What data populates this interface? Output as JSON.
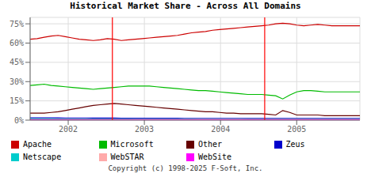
{
  "chart_data": {
    "type": "line",
    "title": "Historical Market Share - Across All Domains",
    "annotations": [
      "Copyright (c) 1998-2025 F-Soft, Inc."
    ],
    "x": [
      2001.5,
      2001.5921276596,
      2001.6842553191,
      2001.7763829787,
      2001.8685106383,
      2001.9606382979,
      2002.0527659574,
      2002.144893617,
      2002.2370212766,
      2002.3291489362,
      2002.4212765957,
      2002.5134042553,
      2002.6055319149,
      2002.6976595745,
      2002.789787234,
      2002.8819148936,
      2002.9740425532,
      2003.0661702128,
      2003.1582978723,
      2003.2504255319,
      2003.3425531915,
      2003.4346808511,
      2003.5268085106,
      2003.6189361702,
      2003.7110638298,
      2003.8031914894,
      2003.8953191489,
      2003.9874468085,
      2004.0795744681,
      2004.1717021277,
      2004.2638297872,
      2004.3559574468,
      2004.4480851064,
      2004.540212766,
      2004.6323404255,
      2004.7244680851,
      2004.8165957447,
      2004.9087234043,
      2005.0008510638,
      2005.0929787234,
      2005.185106383,
      2005.2772340426,
      2005.3693617021,
      2005.4614893617,
      2005.5536170213,
      2005.6457446809,
      2005.7378723404,
      2005.83
    ],
    "xlim": [
      2001.5,
      2005.83
    ],
    "xticks": [
      2002,
      2003,
      2004,
      2005
    ],
    "ylim": [
      0,
      80
    ],
    "yticks": [
      {
        "value": 0,
        "label": "0%"
      },
      {
        "value": 15,
        "label": "15%"
      },
      {
        "value": 30,
        "label": "30%"
      },
      {
        "value": 45,
        "label": "45%"
      },
      {
        "value": 60,
        "label": "60%"
      },
      {
        "value": 75,
        "label": "75%"
      }
    ],
    "grid": true,
    "legend": "bottom",
    "vlines": [
      {
        "x": 2002.58,
        "color": "red"
      },
      {
        "x": 2004.58,
        "color": "red"
      }
    ],
    "series": [
      {
        "name": "Apache",
        "color": "#cc0000",
        "values": [
          63,
          63.5,
          64.5,
          65.5,
          66,
          65,
          64,
          63,
          62.5,
          62,
          62.5,
          63.5,
          63,
          62,
          62.5,
          63,
          63.5,
          64,
          64.5,
          65,
          65.5,
          66,
          67,
          68,
          68.5,
          69,
          70,
          70.5,
          71,
          71.5,
          72,
          72.5,
          73,
          73.5,
          74,
          75,
          75.5,
          75,
          74,
          73.5,
          74,
          74.5,
          74,
          73.5,
          73.5,
          73.5,
          73.5,
          73.5
        ]
      },
      {
        "name": "Microsoft",
        "color": "#00bb00",
        "values": [
          27,
          27.5,
          28,
          27,
          26.5,
          26,
          25.5,
          25,
          24.5,
          24,
          24.5,
          25,
          25.5,
          26,
          26.5,
          26.5,
          26.5,
          26.5,
          26,
          25.5,
          25,
          24.5,
          24,
          23.5,
          23,
          23,
          22.5,
          22,
          21.5,
          21,
          20.5,
          20,
          20,
          20,
          19.5,
          19,
          16.5,
          19.5,
          22,
          23,
          23,
          22.5,
          22,
          22,
          22,
          22,
          22,
          22
        ]
      },
      {
        "name": "Other",
        "color": "#660000",
        "values": [
          5.5,
          5.5,
          5.5,
          6,
          6.5,
          7.5,
          8.5,
          9.5,
          10.5,
          11.5,
          12,
          12.5,
          13,
          12.5,
          12,
          11.5,
          11,
          10.5,
          10,
          9.5,
          9,
          8.5,
          8,
          7.5,
          7,
          6.5,
          6.5,
          6,
          5.5,
          5.5,
          5,
          5,
          5,
          5,
          4.5,
          4,
          7.5,
          6,
          4,
          4,
          4,
          4,
          3.5,
          3.5,
          3.5,
          3.5,
          3.5,
          3.5
        ]
      },
      {
        "name": "Zeus",
        "color": "#0000cc",
        "values": [
          1.8,
          1.8,
          1.8,
          1.8,
          1.8,
          1.7,
          1.7,
          1.7,
          1.7,
          1.6,
          1.6,
          1.6,
          1.6,
          1.5,
          1.5,
          1.5,
          1.5,
          1.5,
          1.5,
          1.5,
          1.5,
          1.5,
          1.4,
          1.4,
          1.4,
          1.4,
          1.4,
          1.4,
          1.4,
          1.4,
          1.4,
          1.3,
          1.3,
          1.3,
          1.3,
          1.3,
          1.3,
          1.3,
          1.3,
          1.3,
          1.3,
          1.3,
          1.3,
          1.3,
          1.3,
          1.3,
          1.3,
          1.3
        ]
      },
      {
        "name": "Netscape",
        "color": "#00cccc",
        "values": [
          1.0,
          1.0,
          1.0,
          1.0,
          0.9,
          0.9,
          0.9,
          0.9,
          0.8,
          0.8,
          0.8,
          0.8,
          0.8,
          0.8,
          0.8,
          0.7,
          0.7,
          0.7,
          0.7,
          0.7,
          0.7,
          0.7,
          0.7,
          0.7,
          0.6,
          0.6,
          0.6,
          0.6,
          0.6,
          0.6,
          0.6,
          0.6,
          0.6,
          0.6,
          0.6,
          0.6,
          0.6,
          0.6,
          0.6,
          0.6,
          0.6,
          0.6,
          0.6,
          0.6,
          0.6,
          0.6,
          0.6,
          0.6
        ]
      },
      {
        "name": "WebSTAR",
        "color": "#ffaaaa",
        "values": [
          0.5,
          0.5,
          0.5,
          0.5,
          0.5,
          0.5,
          0.5,
          0.5,
          0.5,
          0.5,
          0.5,
          0.5,
          0.5,
          0.5,
          0.5,
          0.5,
          0.5,
          0.5,
          0.5,
          0.5,
          0.5,
          0.5,
          0.5,
          0.5,
          0.5,
          0.5,
          0.5,
          0.5,
          0.5,
          0.5,
          0.5,
          0.5,
          0.5,
          0.5,
          0.5,
          0.5,
          0.5,
          0.5,
          0.5,
          0.5,
          0.5,
          0.5,
          0.5,
          0.5,
          0.5,
          0.5,
          0.5,
          0.5
        ]
      },
      {
        "name": "WebSite",
        "color": "#ff00ff",
        "values": [
          0.3,
          0.3,
          0.3,
          0.3,
          0.3,
          0.3,
          0.3,
          0.3,
          0.3,
          0.3,
          0.3,
          0.3,
          0.3,
          0.3,
          0.3,
          0.3,
          0.3,
          0.3,
          0.3,
          0.3,
          0.3,
          0.3,
          0.3,
          0.3,
          0.3,
          0.3,
          0.3,
          0.3,
          0.3,
          0.3,
          0.3,
          0.3,
          0.3,
          0.3,
          0.3,
          0.3,
          0.3,
          0.3,
          0.3,
          0.3,
          0.3,
          0.3,
          0.3,
          0.3,
          0.3,
          0.3,
          0.3,
          0.3
        ]
      }
    ]
  }
}
